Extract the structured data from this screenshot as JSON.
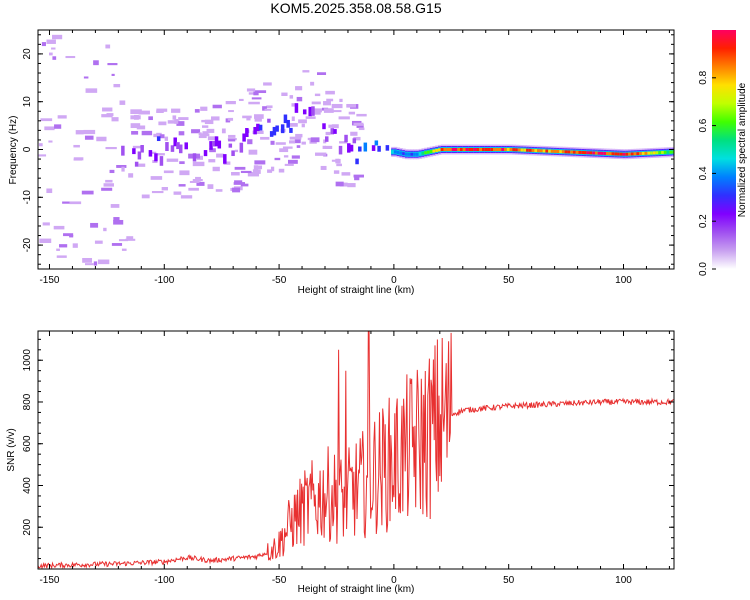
{
  "title": "KOM5.2025.358.08.58.G15",
  "chart_data": [
    {
      "type": "heatmap",
      "xlabel": "Height of straight line (km)",
      "ylabel": "Frequency (Hz)",
      "xlim": [
        -155,
        122
      ],
      "ylim": [
        -25,
        25
      ],
      "xticks": [
        -150,
        -100,
        -50,
        0,
        50,
        100
      ],
      "yticks": [
        -20,
        -10,
        0,
        10,
        20
      ],
      "colorbar": {
        "label": "Normalized spectral amplitude",
        "range": [
          0,
          1
        ],
        "ticks": [
          "0.0",
          "0.2",
          "0.4",
          "0.6",
          "0.8"
        ],
        "colors": [
          "#ffffff",
          "#c8a0f0",
          "#a050f0",
          "#8000ff",
          "#3030ff",
          "#0080ff",
          "#00e0e0",
          "#00e080",
          "#40ff00",
          "#c0ff00",
          "#ffe000",
          "#ff8000",
          "#ff2000",
          "#ff0060"
        ]
      },
      "ridge": {
        "x": [
          -150,
          -130,
          -115,
          -105,
          -95,
          -85,
          -75,
          -65,
          -55,
          -48,
          -42,
          -36,
          -30,
          -25,
          -20,
          -15,
          -10,
          -5,
          0,
          5,
          10,
          20,
          30,
          50,
          75,
          100,
          122
        ],
        "freq": [
          0,
          -1,
          -1.5,
          0,
          -1,
          -1,
          0,
          3,
          5,
          4,
          7,
          10,
          4,
          1,
          0,
          -1,
          -0.5,
          -0.5,
          -0.5,
          -1,
          -1,
          0,
          0,
          0,
          -0.5,
          -1,
          -0.5
        ],
        "amplitude": [
          0.03,
          0.06,
          0.15,
          0.25,
          0.2,
          0.22,
          0.18,
          0.2,
          0.25,
          0.3,
          0.28,
          0.2,
          0.2,
          0.2,
          0.2,
          0.25,
          0.3,
          0.35,
          0.4,
          0.35,
          0.4,
          0.9,
          0.92,
          0.88,
          0.85,
          0.95,
          0.55
        ]
      }
    },
    {
      "type": "line",
      "xlabel": "Height of straight line (km)",
      "ylabel": "SNR (v/v)",
      "xlim": [
        -155,
        122
      ],
      "ylim": [
        0,
        1140
      ],
      "xticks": [
        -150,
        -100,
        -50,
        0,
        50,
        100
      ],
      "yticks": [
        200,
        400,
        600,
        800,
        1000
      ],
      "series": [
        {
          "name": "SNR",
          "color": "#e83030",
          "x": [
            -155,
            -140,
            -120,
            -100,
            -90,
            -80,
            -70,
            -60,
            -55,
            -50,
            -46,
            -42,
            -38,
            -34,
            -30,
            -26,
            -22,
            -18,
            -14,
            -10,
            -5,
            0,
            5,
            10,
            15,
            20,
            25,
            30,
            40,
            50,
            60,
            70,
            80,
            90,
            100,
            110,
            122
          ],
          "y": [
            15,
            20,
            25,
            35,
            55,
            40,
            50,
            60,
            80,
            120,
            200,
            260,
            300,
            330,
            360,
            350,
            330,
            370,
            400,
            450,
            480,
            520,
            560,
            600,
            640,
            700,
            740,
            760,
            770,
            780,
            785,
            790,
            795,
            800,
            800,
            800,
            800
          ],
          "spikes": [
            {
              "x": -24,
              "y": 1050
            },
            {
              "x": -21,
              "y": 950
            },
            {
              "x": -11,
              "y": 1140
            }
          ]
        }
      ]
    }
  ]
}
